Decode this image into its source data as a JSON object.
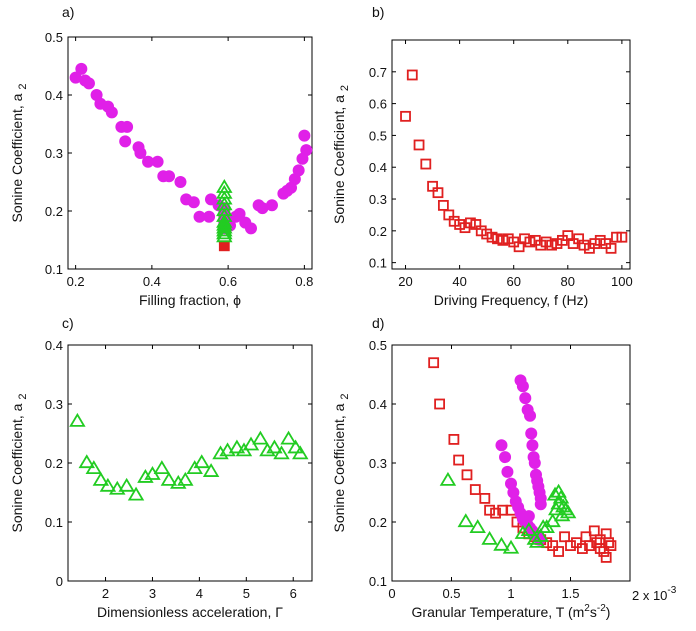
{
  "chart_data": [
    {
      "panel": "a)",
      "type": "scatter",
      "xlabel": "Filling fraction, ϕ",
      "ylabel": "Sonine Coefficient, a",
      "ylabel_sub": "2",
      "xlim": [
        0.18,
        0.82
      ],
      "ylim": [
        0.1,
        0.5
      ],
      "xticks": [
        0.2,
        0.4,
        0.6,
        0.8
      ],
      "yticks": [
        0.1,
        0.2,
        0.3,
        0.4,
        0.5
      ],
      "series": [
        {
          "marker": "circle",
          "color": "#e020e8",
          "filled": true,
          "points": [
            [
              0.2,
              0.43
            ],
            [
              0.215,
              0.445
            ],
            [
              0.225,
              0.425
            ],
            [
              0.235,
              0.42
            ],
            [
              0.255,
              0.4
            ],
            [
              0.265,
              0.385
            ],
            [
              0.285,
              0.38
            ],
            [
              0.295,
              0.37
            ],
            [
              0.32,
              0.345
            ],
            [
              0.335,
              0.345
            ],
            [
              0.33,
              0.32
            ],
            [
              0.365,
              0.31
            ],
            [
              0.37,
              0.3
            ],
            [
              0.39,
              0.285
            ],
            [
              0.415,
              0.285
            ],
            [
              0.43,
              0.26
            ],
            [
              0.445,
              0.26
            ],
            [
              0.475,
              0.25
            ],
            [
              0.49,
              0.22
            ],
            [
              0.51,
              0.215
            ],
            [
              0.525,
              0.19
            ],
            [
              0.55,
              0.19
            ],
            [
              0.555,
              0.22
            ],
            [
              0.575,
              0.21
            ],
            [
              0.59,
              0.205
            ],
            [
              0.59,
              0.2
            ],
            [
              0.59,
              0.195
            ],
            [
              0.59,
              0.19
            ],
            [
              0.59,
              0.185
            ],
            [
              0.59,
              0.18
            ],
            [
              0.59,
              0.175
            ],
            [
              0.59,
              0.17
            ],
            [
              0.605,
              0.175
            ],
            [
              0.62,
              0.19
            ],
            [
              0.63,
              0.195
            ],
            [
              0.645,
              0.18
            ],
            [
              0.66,
              0.17
            ],
            [
              0.68,
              0.21
            ],
            [
              0.69,
              0.205
            ],
            [
              0.715,
              0.21
            ],
            [
              0.745,
              0.23
            ],
            [
              0.755,
              0.235
            ],
            [
              0.765,
              0.24
            ],
            [
              0.775,
              0.255
            ],
            [
              0.785,
              0.27
            ],
            [
              0.795,
              0.29
            ],
            [
              0.8,
              0.33
            ],
            [
              0.805,
              0.305
            ]
          ]
        },
        {
          "marker": "square",
          "color": "#e02020",
          "filled": true,
          "points": [
            [
              0.59,
              0.14
            ]
          ]
        },
        {
          "marker": "triangle",
          "color": "#22cc22",
          "filled": false,
          "points": [
            [
              0.59,
              0.24
            ],
            [
              0.59,
              0.23
            ],
            [
              0.59,
              0.22
            ],
            [
              0.59,
              0.21
            ],
            [
              0.59,
              0.2
            ],
            [
              0.59,
              0.19
            ],
            [
              0.59,
              0.18
            ],
            [
              0.59,
              0.175
            ],
            [
              0.59,
              0.17
            ],
            [
              0.59,
              0.165
            ],
            [
              0.59,
              0.16
            ],
            [
              0.59,
              0.155
            ]
          ]
        }
      ]
    },
    {
      "panel": "b)",
      "type": "scatter",
      "xlabel": "Driving Frequency, f (Hz)",
      "ylabel": "Sonine Coefficient, a",
      "ylabel_sub": "2",
      "xlim": [
        15,
        103
      ],
      "ylim": [
        0.08,
        0.8
      ],
      "xticks": [
        20,
        40,
        60,
        80,
        100
      ],
      "yticks": [
        0.1,
        0.2,
        0.3,
        0.4,
        0.5,
        0.6,
        0.7
      ],
      "series": [
        {
          "marker": "square",
          "color": "#e02020",
          "filled": false,
          "points": [
            [
              20,
              0.56
            ],
            [
              22.5,
              0.69
            ],
            [
              25,
              0.47
            ],
            [
              27.5,
              0.41
            ],
            [
              30,
              0.34
            ],
            [
              32,
              0.32
            ],
            [
              34,
              0.28
            ],
            [
              36,
              0.25
            ],
            [
              38,
              0.23
            ],
            [
              40,
              0.22
            ],
            [
              42,
              0.21
            ],
            [
              44,
              0.225
            ],
            [
              46,
              0.22
            ],
            [
              48,
              0.2
            ],
            [
              50,
              0.19
            ],
            [
              52,
              0.18
            ],
            [
              54,
              0.175
            ],
            [
              56,
              0.17
            ],
            [
              58,
              0.175
            ],
            [
              60,
              0.165
            ],
            [
              62,
              0.15
            ],
            [
              64,
              0.175
            ],
            [
              66,
              0.165
            ],
            [
              68,
              0.17
            ],
            [
              70,
              0.155
            ],
            [
              72,
              0.165
            ],
            [
              74,
              0.155
            ],
            [
              76,
              0.16
            ],
            [
              78,
              0.17
            ],
            [
              80,
              0.185
            ],
            [
              82,
              0.16
            ],
            [
              84,
              0.175
            ],
            [
              86,
              0.155
            ],
            [
              88,
              0.145
            ],
            [
              90,
              0.16
            ],
            [
              92,
              0.17
            ],
            [
              94,
              0.16
            ],
            [
              96,
              0.145
            ],
            [
              98,
              0.18
            ],
            [
              100,
              0.18
            ]
          ]
        }
      ]
    },
    {
      "panel": "c)",
      "type": "scatter",
      "xlabel": "Dimensionless acceleration, Γ",
      "ylabel": "Sonine Coefficient, a",
      "ylabel_sub": "2",
      "xlim": [
        1.2,
        6.4
      ],
      "ylim": [
        0,
        0.4
      ],
      "xticks": [
        2,
        3,
        4,
        5,
        6
      ],
      "yticks": [
        0,
        0.1,
        0.2,
        0.3,
        0.4
      ],
      "series": [
        {
          "marker": "triangle",
          "color": "#22cc22",
          "filled": false,
          "points": [
            [
              1.4,
              0.27
            ],
            [
              1.6,
              0.2
            ],
            [
              1.75,
              0.19
            ],
            [
              1.9,
              0.17
            ],
            [
              2.05,
              0.16
            ],
            [
              2.25,
              0.155
            ],
            [
              2.45,
              0.16
            ],
            [
              2.65,
              0.145
            ],
            [
              2.85,
              0.175
            ],
            [
              3.0,
              0.18
            ],
            [
              3.2,
              0.19
            ],
            [
              3.35,
              0.17
            ],
            [
              3.55,
              0.165
            ],
            [
              3.7,
              0.17
            ],
            [
              3.9,
              0.19
            ],
            [
              4.05,
              0.2
            ],
            [
              4.25,
              0.185
            ],
            [
              4.45,
              0.215
            ],
            [
              4.6,
              0.22
            ],
            [
              4.8,
              0.225
            ],
            [
              4.95,
              0.22
            ],
            [
              5.1,
              0.23
            ],
            [
              5.3,
              0.24
            ],
            [
              5.45,
              0.22
            ],
            [
              5.6,
              0.225
            ],
            [
              5.75,
              0.215
            ],
            [
              5.9,
              0.24
            ],
            [
              6.05,
              0.225
            ],
            [
              6.15,
              0.215
            ]
          ]
        }
      ]
    },
    {
      "panel": "d)",
      "type": "scatter",
      "xlabel": "Granular Temperature, T (m",
      "xlabel_sup1": "2",
      "xlabel_mid": "s",
      "xlabel_sup2": "-2",
      "xlabel_end": ")",
      "x_multiplier_base": "2 x 10",
      "x_multiplier_exp": "-3",
      "ylabel": "Sonine Coefficient, a",
      "ylabel_sub": "2",
      "xlim": [
        0,
        2
      ],
      "ylim": [
        0.1,
        0.5
      ],
      "xticks": [
        0,
        0.5,
        1,
        1.5
      ],
      "xtick_labels": [
        "0",
        "0.5",
        "1",
        "1.5"
      ],
      "yticks": [
        0.1,
        0.2,
        0.3,
        0.4,
        0.5
      ],
      "series": [
        {
          "marker": "square",
          "color": "#e02020",
          "filled": false,
          "points": [
            [
              0.35,
              0.47
            ],
            [
              0.4,
              0.4
            ],
            [
              0.52,
              0.34
            ],
            [
              0.56,
              0.305
            ],
            [
              0.63,
              0.28
            ],
            [
              0.7,
              0.255
            ],
            [
              0.78,
              0.24
            ],
            [
              0.82,
              0.22
            ],
            [
              0.87,
              0.215
            ],
            [
              0.93,
              0.22
            ],
            [
              1.0,
              0.22
            ],
            [
              1.05,
              0.2
            ],
            [
              1.1,
              0.19
            ],
            [
              1.15,
              0.18
            ],
            [
              1.2,
              0.175
            ],
            [
              1.25,
              0.17
            ],
            [
              1.3,
              0.165
            ],
            [
              1.35,
              0.16
            ],
            [
              1.4,
              0.15
            ],
            [
              1.45,
              0.175
            ],
            [
              1.5,
              0.16
            ],
            [
              1.55,
              0.165
            ],
            [
              1.6,
              0.155
            ],
            [
              1.63,
              0.175
            ],
            [
              1.66,
              0.16
            ],
            [
              1.7,
              0.185
            ],
            [
              1.72,
              0.165
            ],
            [
              1.75,
              0.155
            ],
            [
              1.78,
              0.15
            ],
            [
              1.8,
              0.18
            ],
            [
              1.82,
              0.165
            ],
            [
              1.84,
              0.16
            ],
            [
              1.8,
              0.14
            ],
            [
              1.75,
              0.17
            ]
          ]
        },
        {
          "marker": "circle",
          "color": "#e020e8",
          "filled": true,
          "points": [
            [
              1.08,
              0.44
            ],
            [
              1.1,
              0.43
            ],
            [
              1.12,
              0.41
            ],
            [
              1.14,
              0.39
            ],
            [
              1.16,
              0.38
            ],
            [
              1.17,
              0.35
            ],
            [
              1.18,
              0.33
            ],
            [
              1.19,
              0.31
            ],
            [
              1.2,
              0.3
            ],
            [
              1.21,
              0.28
            ],
            [
              1.22,
              0.27
            ],
            [
              1.23,
              0.26
            ],
            [
              1.24,
              0.25
            ],
            [
              1.25,
              0.24
            ],
            [
              0.95,
              0.31
            ],
            [
              0.92,
              0.33
            ],
            [
              0.97,
              0.285
            ],
            [
              1.0,
              0.265
            ],
            [
              1.02,
              0.25
            ],
            [
              1.04,
              0.235
            ],
            [
              1.06,
              0.225
            ],
            [
              1.08,
              0.215
            ],
            [
              1.1,
              0.205
            ],
            [
              1.12,
              0.2
            ],
            [
              1.14,
              0.195
            ],
            [
              1.16,
              0.19
            ],
            [
              1.18,
              0.185
            ],
            [
              1.2,
              0.18
            ],
            [
              1.22,
              0.175
            ],
            [
              1.24,
              0.17
            ],
            [
              1.15,
              0.21
            ],
            [
              1.25,
              0.23
            ]
          ]
        },
        {
          "marker": "triangle",
          "color": "#22cc22",
          "filled": false,
          "points": [
            [
              0.47,
              0.27
            ],
            [
              0.62,
              0.2
            ],
            [
              0.72,
              0.19
            ],
            [
              0.82,
              0.17
            ],
            [
              0.92,
              0.16
            ],
            [
              1.0,
              0.155
            ],
            [
              1.1,
              0.18
            ],
            [
              1.15,
              0.185
            ],
            [
              1.2,
              0.17
            ],
            [
              1.25,
              0.175
            ],
            [
              1.3,
              0.19
            ],
            [
              1.35,
              0.2
            ],
            [
              1.38,
              0.22
            ],
            [
              1.4,
              0.23
            ],
            [
              1.42,
              0.24
            ],
            [
              1.44,
              0.225
            ],
            [
              1.46,
              0.22
            ],
            [
              1.48,
              0.215
            ],
            [
              1.4,
              0.25
            ],
            [
              1.43,
              0.21
            ],
            [
              1.37,
              0.245
            ],
            [
              1.27,
              0.19
            ],
            [
              1.22,
              0.165
            ]
          ]
        }
      ]
    }
  ]
}
